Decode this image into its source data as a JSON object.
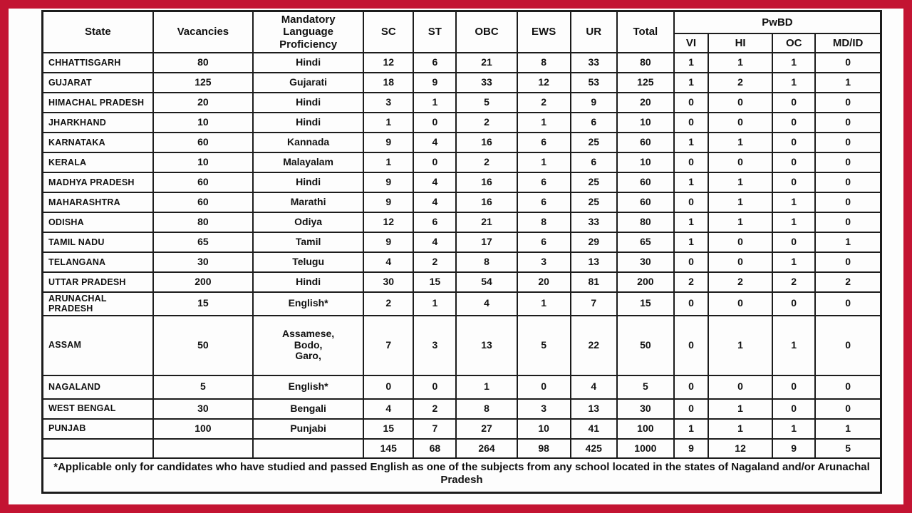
{
  "frame": {
    "border_color": "#c31432"
  },
  "table": {
    "headers": {
      "state": "State",
      "vacancies": "Vacancies",
      "language": "Mandatory Language Proficiency",
      "sc": "SC",
      "st": "ST",
      "obc": "OBC",
      "ews": "EWS",
      "ur": "UR",
      "total": "Total",
      "pwbd": "PwBD",
      "vi": "VI",
      "hi": "HI",
      "oc": "OC",
      "mdid": "MD/ID"
    },
    "rows": [
      {
        "state": "CHHATTISGARH",
        "vacancies": "80",
        "language": "Hindi",
        "sc": "12",
        "st": "6",
        "obc": "21",
        "ews": "8",
        "ur": "33",
        "total": "80",
        "vi": "1",
        "hi": "1",
        "oc": "1",
        "mdid": "0"
      },
      {
        "state": "GUJARAT",
        "vacancies": "125",
        "language": "Gujarati",
        "sc": "18",
        "st": "9",
        "obc": "33",
        "ews": "12",
        "ur": "53",
        "total": "125",
        "vi": "1",
        "hi": "2",
        "oc": "1",
        "mdid": "1"
      },
      {
        "state": "HIMACHAL PRADESH",
        "vacancies": "20",
        "language": "Hindi",
        "sc": "3",
        "st": "1",
        "obc": "5",
        "ews": "2",
        "ur": "9",
        "total": "20",
        "vi": "0",
        "hi": "0",
        "oc": "0",
        "mdid": "0"
      },
      {
        "state": "JHARKHAND",
        "vacancies": "10",
        "language": "Hindi",
        "sc": "1",
        "st": "0",
        "obc": "2",
        "ews": "1",
        "ur": "6",
        "total": "10",
        "vi": "0",
        "hi": "0",
        "oc": "0",
        "mdid": "0"
      },
      {
        "state": "KARNATAKA",
        "vacancies": "60",
        "language": "Kannada",
        "sc": "9",
        "st": "4",
        "obc": "16",
        "ews": "6",
        "ur": "25",
        "total": "60",
        "vi": "1",
        "hi": "1",
        "oc": "0",
        "mdid": "0"
      },
      {
        "state": "KERALA",
        "vacancies": "10",
        "language": "Malayalam",
        "sc": "1",
        "st": "0",
        "obc": "2",
        "ews": "1",
        "ur": "6",
        "total": "10",
        "vi": "0",
        "hi": "0",
        "oc": "0",
        "mdid": "0"
      },
      {
        "state": "MADHYA PRADESH",
        "vacancies": "60",
        "language": "Hindi",
        "sc": "9",
        "st": "4",
        "obc": "16",
        "ews": "6",
        "ur": "25",
        "total": "60",
        "vi": "1",
        "hi": "1",
        "oc": "0",
        "mdid": "0"
      },
      {
        "state": "MAHARASHTRA",
        "vacancies": "60",
        "language": "Marathi",
        "sc": "9",
        "st": "4",
        "obc": "16",
        "ews": "6",
        "ur": "25",
        "total": "60",
        "vi": "0",
        "hi": "1",
        "oc": "1",
        "mdid": "0"
      },
      {
        "state": "ODISHA",
        "vacancies": "80",
        "language": "Odiya",
        "sc": "12",
        "st": "6",
        "obc": "21",
        "ews": "8",
        "ur": "33",
        "total": "80",
        "vi": "1",
        "hi": "1",
        "oc": "1",
        "mdid": "0"
      },
      {
        "state": "TAMIL NADU",
        "vacancies": "65",
        "language": "Tamil",
        "sc": "9",
        "st": "4",
        "obc": "17",
        "ews": "6",
        "ur": "29",
        "total": "65",
        "vi": "1",
        "hi": "0",
        "oc": "0",
        "mdid": "1"
      },
      {
        "state": "TELANGANA",
        "vacancies": "30",
        "language": "Telugu",
        "sc": "4",
        "st": "2",
        "obc": "8",
        "ews": "3",
        "ur": "13",
        "total": "30",
        "vi": "0",
        "hi": "0",
        "oc": "1",
        "mdid": "0"
      },
      {
        "state": "UTTAR PRADESH",
        "vacancies": "200",
        "language": "Hindi",
        "sc": "30",
        "st": "15",
        "obc": "54",
        "ews": "20",
        "ur": "81",
        "total": "200",
        "vi": "2",
        "hi": "2",
        "oc": "2",
        "mdid": "2"
      },
      {
        "state": "ARUNACHAL PRADESH",
        "vacancies": "15",
        "language": "English*",
        "sc": "2",
        "st": "1",
        "obc": "4",
        "ews": "1",
        "ur": "7",
        "total": "15",
        "vi": "0",
        "hi": "0",
        "oc": "0",
        "mdid": "0"
      },
      {
        "state": "ASSAM",
        "vacancies": "50",
        "language": "Assamese,\nBodo,\nGaro,",
        "sc": "7",
        "st": "3",
        "obc": "13",
        "ews": "5",
        "ur": "22",
        "total": "50",
        "vi": "0",
        "hi": "1",
        "oc": "1",
        "mdid": "0"
      },
      {
        "state": "NAGALAND",
        "vacancies": "5",
        "language": "English*",
        "sc": "0",
        "st": "0",
        "obc": "1",
        "ews": "0",
        "ur": "4",
        "total": "5",
        "vi": "0",
        "hi": "0",
        "oc": "0",
        "mdid": "0"
      },
      {
        "state": "WEST BENGAL",
        "vacancies": "30",
        "language": "Bengali",
        "sc": "4",
        "st": "2",
        "obc": "8",
        "ews": "3",
        "ur": "13",
        "total": "30",
        "vi": "0",
        "hi": "1",
        "oc": "0",
        "mdid": "0"
      },
      {
        "state": "PUNJAB",
        "vacancies": "100",
        "language": "Punjabi",
        "sc": "15",
        "st": "7",
        "obc": "27",
        "ews": "10",
        "ur": "41",
        "total": "100",
        "vi": "1",
        "hi": "1",
        "oc": "1",
        "mdid": "1"
      }
    ],
    "totals": {
      "sc": "145",
      "st": "68",
      "obc": "264",
      "ews": "98",
      "ur": "425",
      "total": "1000",
      "vi": "9",
      "hi": "12",
      "oc": "9",
      "mdid": "5"
    },
    "footnote": "*Applicable only for candidates who have studied and passed English as one of the subjects from any school located in the states of Nagaland and/or Arunachal Pradesh"
  }
}
